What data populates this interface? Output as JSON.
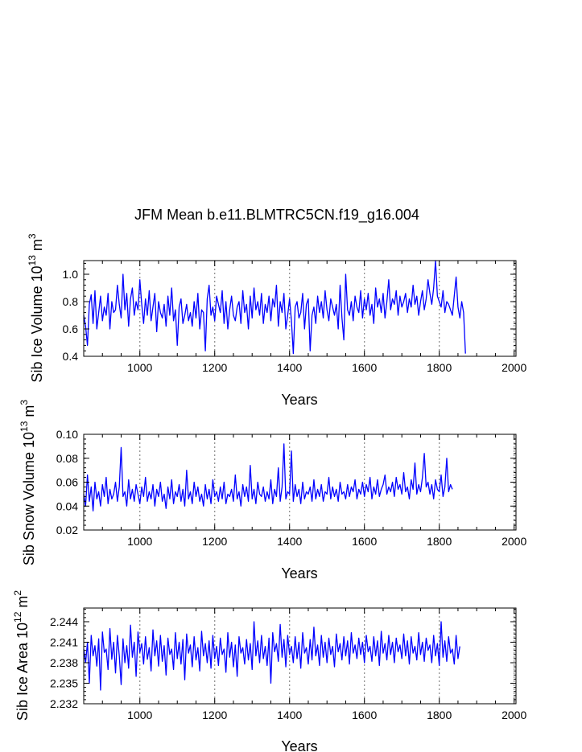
{
  "figure": {
    "title": "JFM Mean b.e11.BLMTRC5CN.f19_g16.004"
  },
  "chart_data": [
    {
      "type": "line",
      "xlabel": "Years",
      "ylabel": "Sib Ice Volume 10^13 m^3",
      "ylabel_parts": {
        "main": "Sib Ice Volume 10",
        "exp": "13",
        "unit": " m",
        "unit_exp": "3"
      },
      "xlim": [
        850,
        2005
      ],
      "ylim": [
        0.4,
        1.1
      ],
      "xticks": [
        1000,
        1200,
        1400,
        1600,
        1800,
        2000
      ],
      "xtick_labels": [
        "1000",
        "1200",
        "1400",
        "1600",
        "1800",
        "2000"
      ],
      "yticks": [
        0.4,
        0.6,
        0.8,
        1.0
      ],
      "ytick_labels": [
        "0.4",
        "0.6",
        "0.8",
        "1.0"
      ],
      "vlines": [
        1000,
        1200,
        1400,
        1600,
        1800,
        2000
      ],
      "series": [
        {
          "color": "#0000ff",
          "x_start": 850,
          "x_step": 5,
          "values": [
            0.7,
            0.62,
            0.48,
            0.78,
            0.85,
            0.64,
            0.88,
            0.6,
            0.72,
            0.84,
            0.66,
            0.76,
            0.7,
            0.86,
            0.6,
            0.8,
            0.72,
            0.74,
            0.92,
            0.78,
            0.68,
            1.0,
            0.74,
            0.86,
            0.62,
            0.82,
            0.9,
            0.7,
            0.8,
            0.74,
            0.96,
            0.78,
            0.64,
            0.82,
            0.7,
            0.88,
            0.66,
            0.76,
            0.86,
            0.58,
            0.8,
            0.72,
            0.68,
            0.78,
            0.62,
            0.84,
            0.7,
            0.9,
            0.66,
            0.74,
            0.48,
            0.76,
            0.82,
            0.64,
            0.7,
            0.78,
            0.66,
            0.72,
            0.62,
            0.8,
            0.68,
            0.86,
            0.6,
            0.74,
            0.72,
            0.44,
            0.82,
            0.92,
            0.7,
            0.76,
            0.66,
            0.84,
            0.78,
            0.72,
            0.88,
            0.64,
            0.8,
            0.6,
            0.74,
            0.84,
            0.7,
            0.66,
            0.76,
            0.8,
            0.64,
            0.88,
            0.72,
            0.78,
            0.6,
            0.84,
            0.68,
            0.9,
            0.74,
            0.8,
            0.7,
            0.86,
            0.64,
            0.78,
            0.72,
            0.84,
            0.66,
            0.82,
            0.76,
            0.92,
            0.62,
            0.8,
            0.72,
            0.86,
            0.6,
            0.7,
            0.82,
            0.66,
            0.42,
            0.76,
            0.8,
            0.68,
            0.72,
            0.86,
            0.6,
            0.78,
            0.82,
            0.44,
            0.7,
            0.76,
            0.64,
            0.84,
            0.72,
            0.8,
            0.68,
            0.88,
            0.74,
            0.66,
            0.82,
            0.76,
            0.7,
            0.78,
            0.6,
            0.92,
            0.68,
            0.52,
            1.0,
            0.74,
            0.7,
            0.8,
            0.66,
            0.84,
            0.76,
            0.72,
            0.88,
            0.68,
            0.82,
            0.74,
            0.86,
            0.7,
            0.78,
            0.64,
            0.9,
            0.76,
            0.82,
            0.72,
            0.86,
            0.68,
            0.8,
            0.96,
            0.74,
            0.82,
            0.78,
            0.88,
            0.7,
            0.84,
            0.76,
            0.8,
            0.86,
            0.72,
            0.82,
            0.76,
            0.92,
            0.78,
            0.84,
            0.7,
            0.8,
            0.88,
            0.74,
            0.82,
            0.96,
            0.86,
            0.78,
            0.9,
            1.1,
            0.84,
            0.8,
            0.76,
            0.88,
            0.72,
            0.8,
            0.78,
            0.74,
            0.7,
            0.84,
            0.98,
            0.76,
            0.68,
            0.8,
            0.72,
            0.42
          ]
        }
      ]
    },
    {
      "type": "line",
      "xlabel": "Years",
      "ylabel": "Sib Snow Volume 10^13 m^3",
      "ylabel_parts": {
        "main": "Sib Snow Volume 10",
        "exp": "13",
        "unit": " m",
        "unit_exp": "3"
      },
      "xlim": [
        850,
        2005
      ],
      "ylim": [
        0.02,
        0.1
      ],
      "xticks": [
        1000,
        1200,
        1400,
        1600,
        1800,
        2000
      ],
      "xtick_labels": [
        "1000",
        "1200",
        "1400",
        "1600",
        "1800",
        "2000"
      ],
      "yticks": [
        0.02,
        0.04,
        0.06,
        0.08,
        0.1
      ],
      "ytick_labels": [
        "0.02",
        "0.04",
        "0.06",
        "0.08",
        "0.10"
      ],
      "vlines": [
        1000,
        1200,
        1400,
        1600,
        1800,
        2000
      ],
      "series": [
        {
          "color": "#0000ff",
          "x_start": 850,
          "x_step": 5,
          "values": [
            0.05,
            0.04,
            0.066,
            0.044,
            0.056,
            0.036,
            0.06,
            0.046,
            0.052,
            0.04,
            0.058,
            0.048,
            0.064,
            0.042,
            0.054,
            0.046,
            0.05,
            0.06,
            0.044,
            0.056,
            0.089,
            0.048,
            0.052,
            0.04,
            0.062,
            0.046,
            0.054,
            0.044,
            0.058,
            0.05,
            0.042,
            0.056,
            0.048,
            0.064,
            0.044,
            0.052,
            0.046,
            0.058,
            0.04,
            0.054,
            0.048,
            0.06,
            0.044,
            0.05,
            0.038,
            0.056,
            0.046,
            0.062,
            0.042,
            0.052,
            0.048,
            0.058,
            0.044,
            0.054,
            0.04,
            0.07,
            0.046,
            0.052,
            0.042,
            0.06,
            0.048,
            0.056,
            0.044,
            0.05,
            0.04,
            0.058,
            0.046,
            0.054,
            0.042,
            0.062,
            0.048,
            0.052,
            0.044,
            0.056,
            0.046,
            0.06,
            0.042,
            0.05,
            0.048,
            0.054,
            0.044,
            0.066,
            0.046,
            0.052,
            0.04,
            0.058,
            0.048,
            0.056,
            0.044,
            0.074,
            0.046,
            0.054,
            0.042,
            0.06,
            0.05,
            0.048,
            0.056,
            0.044,
            0.052,
            0.046,
            0.062,
            0.042,
            0.054,
            0.048,
            0.072,
            0.044,
            0.056,
            0.092,
            0.046,
            0.052,
            0.05,
            0.086,
            0.044,
            0.058,
            0.048,
            0.054,
            0.042,
            0.06,
            0.046,
            0.052,
            0.05,
            0.056,
            0.044,
            0.062,
            0.046,
            0.054,
            0.048,
            0.058,
            0.044,
            0.052,
            0.05,
            0.064,
            0.046,
            0.056,
            0.048,
            0.054,
            0.044,
            0.06,
            0.05,
            0.052,
            0.046,
            0.058,
            0.048,
            0.056,
            0.052,
            0.062,
            0.046,
            0.054,
            0.05,
            0.06,
            0.048,
            0.058,
            0.052,
            0.064,
            0.046,
            0.056,
            0.05,
            0.062,
            0.048,
            0.054,
            0.058,
            0.066,
            0.05,
            0.056,
            0.052,
            0.06,
            0.048,
            0.064,
            0.054,
            0.058,
            0.05,
            0.068,
            0.052,
            0.056,
            0.046,
            0.062,
            0.054,
            0.076,
            0.05,
            0.058,
            0.052,
            0.064,
            0.084,
            0.056,
            0.06,
            0.05,
            0.058,
            0.046,
            0.062,
            0.054,
            0.052,
            0.066,
            0.048,
            0.056,
            0.08,
            0.052,
            0.058,
            0.054
          ]
        }
      ]
    },
    {
      "type": "line",
      "xlabel": "Years",
      "ylabel": "Sib Ice Area 10^12 m^2",
      "ylabel_parts": {
        "main": "Sib Ice Area 10",
        "exp": "12",
        "unit": " m",
        "unit_exp": "2"
      },
      "xlim": [
        850,
        2005
      ],
      "ylim": [
        2.232,
        2.246
      ],
      "xticks": [
        1000,
        1200,
        1400,
        1600,
        1800,
        2000
      ],
      "xtick_labels": [
        "1000",
        "1200",
        "1400",
        "1600",
        "1800",
        "2000"
      ],
      "yticks": [
        2.232,
        2.235,
        2.238,
        2.241,
        2.244
      ],
      "ytick_labels": [
        "2.232",
        "2.235",
        "2.238",
        "2.241",
        "2.244"
      ],
      "vlines": [
        1000,
        1200,
        1400,
        1600,
        1800,
        2000
      ],
      "series": [
        {
          "color": "#0000ff",
          "x_start": 850,
          "x_step": 5,
          "values": [
            2.24,
            2.238,
            2.241,
            2.235,
            2.242,
            2.239,
            2.2405,
            2.2375,
            2.2415,
            2.234,
            2.2425,
            2.2395,
            2.24,
            2.237,
            2.243,
            2.2385,
            2.241,
            2.2365,
            2.242,
            2.239,
            2.2348,
            2.2415,
            2.238,
            2.2405,
            2.2372,
            2.2435,
            2.2388,
            2.241,
            2.236,
            2.2425,
            2.2395,
            2.2408,
            2.2378,
            2.2418,
            2.2385,
            2.2402,
            2.2368,
            2.2428,
            2.239,
            2.2412,
            2.2375,
            2.242,
            2.2382,
            2.2405,
            2.2362,
            2.2416,
            2.2392,
            2.24,
            2.237,
            2.2424,
            2.2386,
            2.241,
            2.2378,
            2.2414,
            2.2355,
            2.2422,
            2.2394,
            2.2406,
            2.2374,
            2.2418,
            2.2384,
            2.2402,
            2.2368,
            2.2426,
            2.239,
            2.2408,
            2.238,
            2.2412,
            2.2372,
            2.242,
            2.2386,
            2.2404,
            2.2376,
            2.2416,
            2.2392,
            2.24,
            2.2366,
            2.2424,
            2.2388,
            2.241,
            2.2374,
            2.2406,
            2.236,
            2.2418,
            2.2394,
            2.2402,
            2.2378,
            2.2414,
            2.2384,
            2.2408,
            2.237,
            2.244,
            2.239,
            2.2412,
            2.238,
            2.242,
            2.2386,
            2.2404,
            2.2376,
            2.2416,
            2.235,
            2.2424,
            2.2396,
            2.2408,
            2.2382,
            2.2436,
            2.2388,
            2.2414,
            2.2374,
            2.242,
            2.2392,
            2.2404,
            2.238,
            2.2418,
            2.2386,
            2.241,
            2.2372,
            2.2424,
            2.2394,
            2.2402,
            2.2378,
            2.2414,
            2.2384,
            2.2432,
            2.239,
            2.2406,
            2.2376,
            2.242,
            2.2388,
            2.241,
            2.238,
            2.2416,
            2.2392,
            2.2404,
            2.2374,
            2.2422,
            2.2396,
            2.2408,
            2.2384,
            2.2418,
            2.239,
            2.2412,
            2.2378,
            2.2424,
            2.2394,
            2.2406,
            2.2386,
            2.2416,
            2.2392,
            2.241,
            2.238,
            2.242,
            2.2396,
            2.2404,
            2.2382,
            2.2418,
            2.239,
            2.2412,
            2.2376,
            2.2426,
            2.2394,
            2.2408,
            2.2384,
            2.242,
            2.2392,
            2.241,
            2.238,
            2.2416,
            2.2396,
            2.2406,
            2.2386,
            2.2422,
            2.239,
            2.2412,
            2.2378,
            2.2418,
            2.2394,
            2.2404,
            2.2384,
            2.2424,
            2.2392,
            2.241,
            2.2382,
            2.2416,
            2.2398,
            2.2406,
            2.238,
            2.242,
            2.239,
            2.2408,
            2.2376,
            2.244,
            2.2388,
            2.2412,
            2.2382,
            2.2418,
            2.2394,
            2.24,
            2.2378,
            2.242,
            2.2386,
            2.2404
          ]
        }
      ]
    }
  ]
}
